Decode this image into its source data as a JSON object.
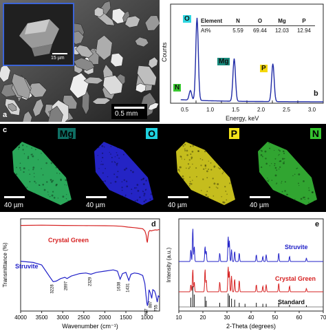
{
  "panels": {
    "a": {
      "label": "a",
      "scale_main": "0.5 mm",
      "scale_inset": "15 µm"
    },
    "b": {
      "label": "b",
      "table": {
        "headers": [
          "Element",
          "N",
          "O",
          "Mg",
          "P"
        ],
        "row_label": "At%",
        "values": [
          "5.59",
          "69.44",
          "12.03",
          "12.94"
        ]
      },
      "peak_labels": [
        "O",
        "Mg",
        "N",
        "P"
      ],
      "ylabel": "Counts",
      "xlabel": "Energy, keV",
      "xticks": [
        "0.5",
        "1.0",
        "1.5",
        "2.0",
        "2.5",
        "3.0"
      ],
      "colors": {
        "O": "#2fd6e0",
        "Mg": "#178a7c",
        "N": "#38c82f",
        "P": "#f5d80a",
        "line": "#1f2aa6"
      }
    },
    "c": {
      "label": "c",
      "maps": [
        {
          "element": "Mg",
          "scale": "40 µm",
          "tag_bg": "#0f6e63",
          "tag_fg": "#000000",
          "fill": "#33c66a"
        },
        {
          "element": "O",
          "scale": "40 µm",
          "tag_bg": "#1fd2e0",
          "tag_fg": "#000000",
          "fill": "#2a2ae8"
        },
        {
          "element": "P",
          "scale": "40 µm",
          "tag_bg": "#f2e21a",
          "tag_fg": "#000000",
          "fill": "#e8de22"
        },
        {
          "element": "N",
          "scale": "40 µm",
          "tag_bg": "#35c22f",
          "tag_fg": "#000000",
          "fill": "#3ac23a"
        }
      ]
    },
    "d": {
      "label": "d"
    },
    "e": {
      "label": "e"
    }
  },
  "chart_data": [
    {
      "type": "line",
      "panel": "d",
      "xlabel": "Wavenumber (cm⁻¹)",
      "ylabel": "Transmittance (%)",
      "xlim": [
        4000,
        700
      ],
      "xticks": [
        4000,
        3500,
        3000,
        2500,
        2000,
        1500,
        1000
      ],
      "series": [
        {
          "name": "Crystal Green",
          "color": "#d62020",
          "x": [
            4000,
            3500,
            3000,
            2500,
            2000,
            1800,
            1600,
            1450,
            1300,
            1200,
            1100,
            1050,
            1020,
            1000,
            990,
            975,
            960,
            930,
            900,
            860,
            800,
            760,
            720,
            700
          ],
          "y": [
            0.96,
            0.97,
            0.96,
            0.955,
            0.95,
            0.945,
            0.93,
            0.9,
            0.88,
            0.86,
            0.84,
            0.76,
            0.62,
            0.4,
            0.34,
            0.55,
            0.72,
            0.78,
            0.76,
            0.78,
            0.8,
            0.79,
            0.81,
            0.8
          ]
        },
        {
          "name": "Struvite",
          "color": "#2020c8",
          "x": [
            4000,
            3700,
            3500,
            3400,
            3300,
            3228,
            3150,
            3050,
            2950,
            2897,
            2800,
            2600,
            2450,
            2329,
            2200,
            2000,
            1800,
            1700,
            1638,
            1580,
            1500,
            1431,
            1380,
            1300,
            1200,
            1100,
            1050,
            1020,
            1000,
            987,
            970,
            950,
            920,
            887,
            860,
            820,
            790,
            755,
            730,
            700
          ],
          "y": [
            0.76,
            0.74,
            0.7,
            0.6,
            0.5,
            0.43,
            0.44,
            0.48,
            0.5,
            0.48,
            0.52,
            0.56,
            0.57,
            0.55,
            0.58,
            0.6,
            0.62,
            0.6,
            0.47,
            0.56,
            0.58,
            0.45,
            0.55,
            0.57,
            0.56,
            0.53,
            0.4,
            0.2,
            0.08,
            0.04,
            0.12,
            0.3,
            0.25,
            0.16,
            0.3,
            0.28,
            0.22,
            0.1,
            0.2,
            0.18
          ]
        }
      ],
      "peak_annotations": [
        "3228",
        "2897",
        "2329",
        "1638",
        "1431",
        "987",
        "887",
        "755"
      ],
      "series_labels": [
        "Crystal Green",
        "Struvite"
      ]
    },
    {
      "type": "line",
      "panel": "e",
      "xlabel": "2-Theta (degrees)",
      "ylabel": "Intensity (a.u.)",
      "xlim": [
        10,
        70
      ],
      "xticks": [
        10,
        20,
        30,
        40,
        50,
        60,
        70
      ],
      "series": [
        {
          "name": "Struvite",
          "color": "#2222c8",
          "peaks": [
            [
              15.0,
              0.35
            ],
            [
              15.8,
              1.0
            ],
            [
              16.4,
              0.45
            ],
            [
              20.9,
              0.45
            ],
            [
              21.4,
              0.3
            ],
            [
              27.0,
              0.25
            ],
            [
              30.5,
              0.75
            ],
            [
              31.0,
              0.6
            ],
            [
              31.9,
              0.35
            ],
            [
              33.2,
              0.3
            ],
            [
              35.1,
              0.25
            ],
            [
              42.2,
              0.2
            ],
            [
              44.9,
              0.15
            ],
            [
              46.3,
              0.2
            ],
            [
              51.5,
              0.25
            ],
            [
              56.0,
              0.15
            ],
            [
              63.0,
              0.1
            ]
          ]
        },
        {
          "name": "Crystal Green",
          "color": "#d62020",
          "peaks": [
            [
              15.0,
              0.25
            ],
            [
              15.8,
              0.8
            ],
            [
              16.4,
              0.35
            ],
            [
              20.9,
              0.8
            ],
            [
              21.4,
              0.4
            ],
            [
              27.0,
              0.35
            ],
            [
              30.5,
              0.9
            ],
            [
              31.0,
              0.7
            ],
            [
              31.9,
              0.55
            ],
            [
              33.2,
              0.45
            ],
            [
              35.1,
              0.4
            ],
            [
              42.2,
              0.25
            ],
            [
              44.9,
              0.2
            ],
            [
              46.3,
              0.25
            ],
            [
              51.5,
              0.3
            ],
            [
              56.0,
              0.2
            ],
            [
              63.0,
              0.12
            ]
          ]
        },
        {
          "name": "Standard",
          "color": "#111111",
          "peaks": [
            [
              15.0,
              0.45
            ],
            [
              15.8,
              1.0
            ],
            [
              16.4,
              0.6
            ],
            [
              20.9,
              0.5
            ],
            [
              21.4,
              0.3
            ],
            [
              27.0,
              0.2
            ],
            [
              30.5,
              0.65
            ],
            [
              31.0,
              0.55
            ],
            [
              31.9,
              0.4
            ],
            [
              33.2,
              0.35
            ],
            [
              35.1,
              0.2
            ],
            [
              37.5,
              0.15
            ],
            [
              42.2,
              0.2
            ],
            [
              44.9,
              0.15
            ],
            [
              46.3,
              0.15
            ],
            [
              51.5,
              0.2
            ],
            [
              56.0,
              0.1
            ],
            [
              63.0,
              0.08
            ]
          ]
        }
      ],
      "series_labels": [
        "Struvite",
        "Crystal Green",
        "Standard"
      ]
    }
  ]
}
